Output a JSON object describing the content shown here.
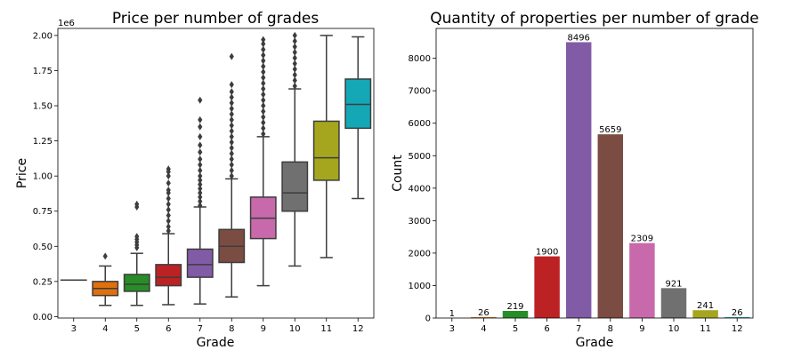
{
  "chart_data": [
    {
      "type": "box",
      "title": "Price per number of grades",
      "xlabel": "Grade",
      "ylabel": "Price",
      "y_scale_label": "1e6",
      "categories": [
        "3",
        "4",
        "5",
        "6",
        "7",
        "8",
        "9",
        "10",
        "11",
        "12"
      ],
      "ylim": [
        -0.01,
        2.05
      ],
      "yticks": [
        0.0,
        0.25,
        0.5,
        0.75,
        1.0,
        1.25,
        1.5,
        1.75,
        2.0
      ],
      "ytick_labels": [
        "0.00",
        "0.25",
        "0.50",
        "0.75",
        "1.00",
        "1.25",
        "1.50",
        "1.75",
        "2.00"
      ],
      "colors": [
        "#1f77b4",
        "#ff7f0e",
        "#2ca02c",
        "#d62728",
        "#9467bd",
        "#8c564b",
        "#e377c2",
        "#7f7f7f",
        "#bcbd22",
        "#17becf"
      ],
      "boxes": [
        {
          "grade": "3",
          "whislo": 0.26,
          "q1": 0.26,
          "med": 0.26,
          "q3": 0.26,
          "whishi": 0.26,
          "fliers": []
        },
        {
          "grade": "4",
          "whislo": 0.08,
          "q1": 0.15,
          "med": 0.2,
          "q3": 0.25,
          "whishi": 0.36,
          "fliers": [
            0.43
          ]
        },
        {
          "grade": "5",
          "whislo": 0.08,
          "q1": 0.18,
          "med": 0.23,
          "q3": 0.3,
          "whishi": 0.45,
          "fliers": [
            0.49,
            0.51,
            0.53,
            0.55,
            0.57,
            0.78,
            0.8
          ]
        },
        {
          "grade": "6",
          "whislo": 0.085,
          "q1": 0.22,
          "med": 0.28,
          "q3": 0.37,
          "whishi": 0.59,
          "fliers": [
            0.61,
            0.64,
            0.68,
            0.72,
            0.76,
            0.8,
            0.84,
            0.88,
            0.9,
            0.95,
            1.0,
            1.03,
            1.05
          ]
        },
        {
          "grade": "7",
          "whislo": 0.09,
          "q1": 0.28,
          "med": 0.37,
          "q3": 0.48,
          "whishi": 0.78,
          "fliers": [
            0.79,
            0.82,
            0.85,
            0.88,
            0.91,
            0.94,
            0.97,
            1.0,
            1.04,
            1.08,
            1.12,
            1.17,
            1.22,
            1.28,
            1.35,
            1.4,
            1.54
          ]
        },
        {
          "grade": "8",
          "whislo": 0.14,
          "q1": 0.385,
          "med": 0.5,
          "q3": 0.62,
          "whishi": 0.98,
          "fliers": [
            1.0,
            1.04,
            1.08,
            1.12,
            1.16,
            1.2,
            1.24,
            1.28,
            1.32,
            1.36,
            1.4,
            1.44,
            1.48,
            1.52,
            1.56,
            1.6,
            1.65,
            1.85
          ]
        },
        {
          "grade": "9",
          "whislo": 0.22,
          "q1": 0.555,
          "med": 0.7,
          "q3": 0.85,
          "whishi": 1.28,
          "fliers": [
            1.3,
            1.34,
            1.38,
            1.42,
            1.46,
            1.5,
            1.54,
            1.58,
            1.62,
            1.66,
            1.7,
            1.74,
            1.78,
            1.82,
            1.86,
            1.9,
            1.94,
            1.97
          ]
        },
        {
          "grade": "10",
          "whislo": 0.36,
          "q1": 0.75,
          "med": 0.88,
          "q3": 1.1,
          "whishi": 1.62,
          "fliers": [
            1.64,
            1.68,
            1.72,
            1.76,
            1.8,
            1.84,
            1.88,
            1.92,
            1.96,
            2.0
          ]
        },
        {
          "grade": "11",
          "whislo": 0.42,
          "q1": 0.97,
          "med": 1.13,
          "q3": 1.39,
          "whishi": 2.0,
          "fliers": []
        },
        {
          "grade": "12",
          "whislo": 0.84,
          "q1": 1.34,
          "med": 1.51,
          "q3": 1.69,
          "whishi": 1.99,
          "fliers": []
        }
      ]
    },
    {
      "type": "bar",
      "title": "Quantity of properties per number of grade",
      "xlabel": "Grade",
      "ylabel": "Count",
      "categories": [
        "3",
        "4",
        "5",
        "6",
        "7",
        "8",
        "9",
        "10",
        "11",
        "12"
      ],
      "values": [
        1,
        26,
        219,
        1900,
        8496,
        5659,
        2309,
        921,
        241,
        26
      ],
      "ylim": [
        0,
        8920
      ],
      "yticks": [
        0,
        1000,
        2000,
        3000,
        4000,
        5000,
        6000,
        7000,
        8000
      ],
      "colors": [
        "#1f77b4",
        "#ff7f0e",
        "#2ca02c",
        "#d62728",
        "#9467bd",
        "#8c564b",
        "#e377c2",
        "#7f7f7f",
        "#bcbd22",
        "#17becf"
      ]
    }
  ]
}
